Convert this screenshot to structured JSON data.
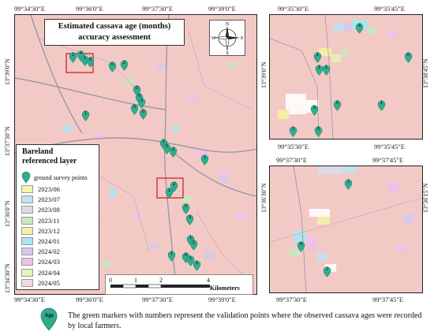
{
  "main_map": {
    "title_line1": "Estimated cassava age (months)",
    "title_line2": "accuracy assessment",
    "top_lon_labels": [
      "99°34'30\"E",
      "99°36'0\"E",
      "99°37'30\"E",
      "99°39'0\"E"
    ],
    "bottom_lon_labels": [
      "99°34'30\"E",
      "99°36'0\"E",
      "99°37'30\"E",
      "99°39'0\"E"
    ],
    "left_lat_labels": [
      "13°39'0\"N",
      "13°37'30\"N",
      "13°36'0\"N",
      "13°34'30\"N"
    ],
    "compass": {
      "n": "N",
      "s": "S",
      "e": "E",
      "w": "W"
    },
    "markers": [
      "1",
      "4",
      "1",
      "0",
      "0",
      "2",
      "0",
      "6",
      "2",
      "0",
      "1",
      "0",
      "1",
      "0",
      "2",
      "2",
      "1",
      "0",
      "3",
      "1",
      "1",
      "1",
      "0",
      "1",
      "1",
      "1"
    ]
  },
  "legend": {
    "title_line1": "Bareland",
    "title_line2": "referenced layer",
    "ground_survey_label": "ground survey points",
    "items": [
      {
        "label": "2023/06",
        "color": "#f7f3b3"
      },
      {
        "label": "2023/07",
        "color": "#bfe3f2"
      },
      {
        "label": "2023/08",
        "color": "#d9dcea"
      },
      {
        "label": "2023/11",
        "color": "#c9e7bf"
      },
      {
        "label": "2023/12",
        "color": "#f6f0a5"
      },
      {
        "label": "2024/01",
        "color": "#a9e6f0"
      },
      {
        "label": "2024/02",
        "color": "#d6c9ec"
      },
      {
        "label": "2024/03",
        "color": "#ecc2ea"
      },
      {
        "label": "2024/04",
        "color": "#e6f2b8"
      },
      {
        "label": "2024/05",
        "color": "#f6d8d4"
      }
    ]
  },
  "scale_bar": {
    "ticks": [
      "0",
      "1",
      "2",
      "4"
    ],
    "unit": "Kilometers"
  },
  "inset_top": {
    "top_lon_labels": [
      "99°35'30\"E",
      "99°35'45\"E"
    ],
    "bottom_lon_labels": [
      "99°35'30\"E",
      "99°35'45\"E"
    ],
    "lat_labels": [
      "13°39'0\"N",
      "13°38'45\"N"
    ],
    "markers": [
      "4",
      "1",
      "1",
      "1",
      "0",
      "5",
      "0",
      "1",
      "1",
      "0"
    ]
  },
  "inset_bottom": {
    "top_lon_labels": [
      "99°37'30\"E",
      "99°37'45\"E"
    ],
    "bottom_lon_labels": [
      "99°37'30\"E",
      "99°37'45\"E"
    ],
    "lat_labels": [
      "13°36'30\"N",
      "13°36'15\"N"
    ],
    "markers": [
      "2",
      "4",
      "7"
    ]
  },
  "caption": {
    "marker_label": "Age",
    "text": "The green markers with numbers represent the validation points where the observed cassava ages were recorded by local farmers.",
    "marker_color": "#2fae8f"
  }
}
